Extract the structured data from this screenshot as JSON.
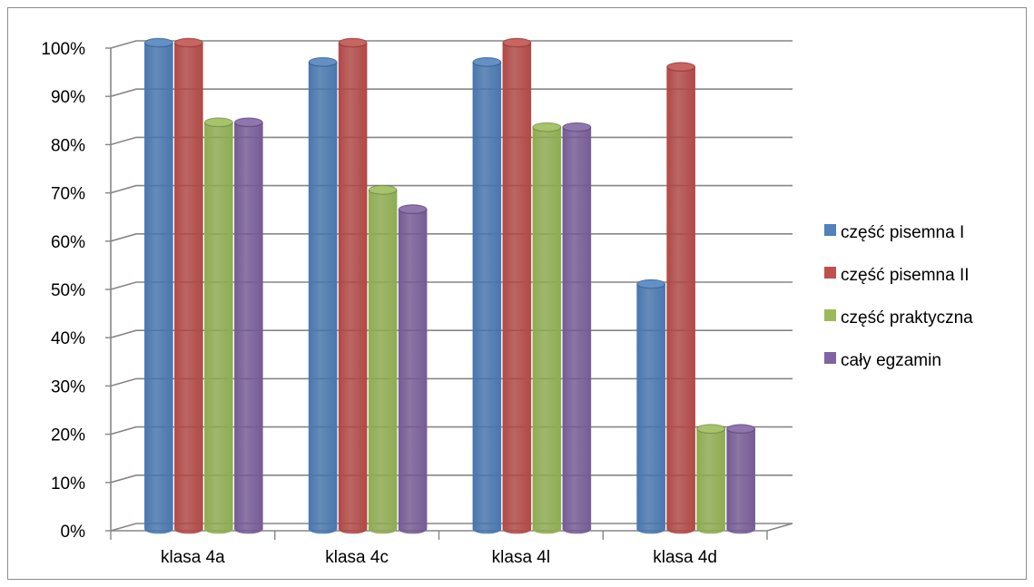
{
  "chart_data": {
    "type": "bar",
    "title": "",
    "xlabel": "",
    "ylabel": "",
    "categories": [
      "klasa 4a",
      "klasa 4c",
      "klasa 4l",
      "klasa 4d"
    ],
    "series": [
      {
        "name": "część pisemna I",
        "values": [
          100,
          96,
          96,
          50
        ],
        "color": "#4f81bd"
      },
      {
        "name": "część pisemna II",
        "values": [
          100,
          100,
          100,
          95
        ],
        "color": "#c0504d"
      },
      {
        "name": "część praktyczna",
        "values": [
          83.5,
          69.5,
          82.5,
          20
        ],
        "color": "#9bbb59"
      },
      {
        "name": "cały egzamin",
        "values": [
          83.5,
          65.5,
          82.5,
          20
        ],
        "color": "#8064a2"
      }
    ],
    "ylim": [
      0,
      100
    ],
    "yticks": [
      "0%",
      "10%",
      "20%",
      "30%",
      "40%",
      "50%",
      "60%",
      "70%",
      "80%",
      "90%",
      "100%"
    ],
    "grid": true,
    "legend_position": "right",
    "style": "3d-cylinder"
  }
}
